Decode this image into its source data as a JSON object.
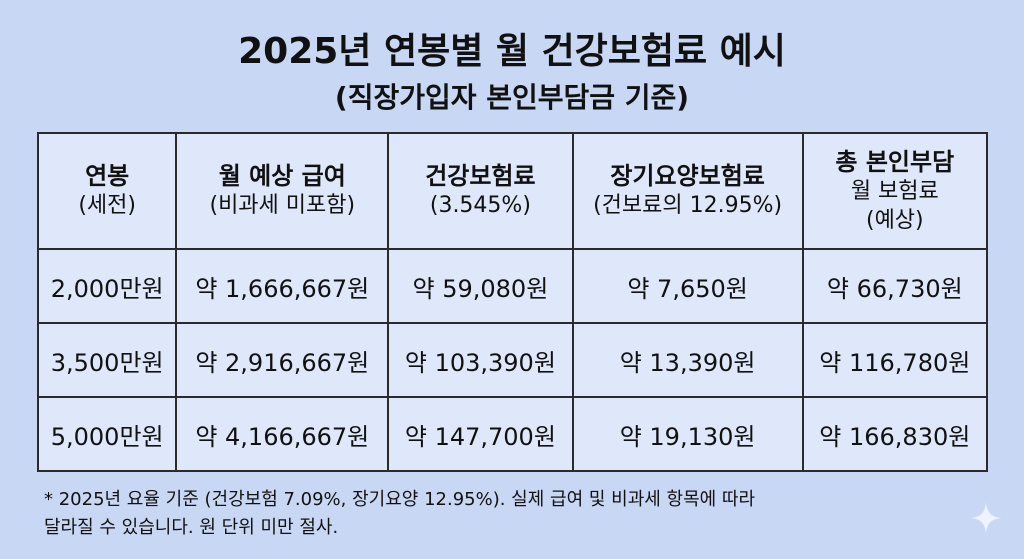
{
  "header": {
    "title": "2025년 연봉별 월 건강보험료 예시",
    "subtitle": "(직장가입자 본인부담금 기준)"
  },
  "table": {
    "columns": [
      [
        "연봉",
        "(세전)"
      ],
      [
        "월 예상 급여",
        "(비과세 미포함)"
      ],
      [
        "건강보험료",
        "(3.545%)"
      ],
      [
        "장기요양보험료",
        "(건보료의 12.95%)"
      ],
      [
        "총 본인부담",
        "월 보험료",
        "(예상)"
      ]
    ],
    "rows": [
      [
        "2,000만원",
        "약 1,666,667원",
        "약 59,080원",
        "약 7,650원",
        "약 66,730원"
      ],
      [
        "3,500만원",
        "약 2,916,667원",
        "약 103,390원",
        "약 13,390원",
        "약 116,780원"
      ],
      [
        "5,000만원",
        "약 4,166,667원",
        "약 147,700원",
        "약 19,130원",
        "약 166,830원"
      ]
    ]
  },
  "footnote": [
    "* 2025년 요율 기준 (건강보험 7.09%, 장기요양 12.95%). 실제 급여 및 비과세 항목에 따라",
    "달라질 수 있습니다. 원 단위 미만 절사."
  ]
}
